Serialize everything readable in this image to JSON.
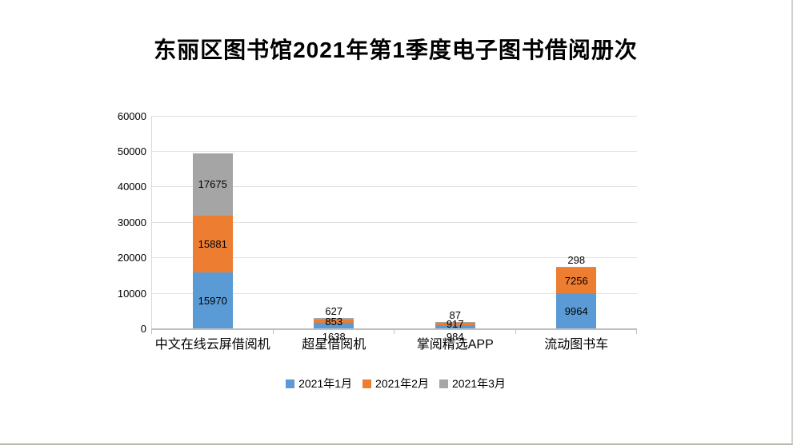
{
  "title": "东丽区图书馆2021年第1季度电子图书借阅册次",
  "colors": {
    "series_jan": "#5B9BD5",
    "series_feb": "#ED7D31",
    "series_mar": "#A5A5A5",
    "gridline": "#E2E2E2",
    "axis_line": "#BFBFBF",
    "text": "#000000"
  },
  "chart_data": {
    "type": "bar",
    "stacked": true,
    "title": "东丽区图书馆2021年第1季度电子图书借阅册次",
    "categories": [
      "中文在线云屏借阅机",
      "超星借阅机",
      "掌阅精选APP",
      "流动图书车"
    ],
    "series": [
      {
        "name": "2021年1月",
        "color": "#5B9BD5",
        "values": [
          15970,
          1638,
          984,
          9964
        ]
      },
      {
        "name": "2021年2月",
        "color": "#ED7D31",
        "values": [
          15881,
          853,
          917,
          7256
        ]
      },
      {
        "name": "2021年3月",
        "color": "#A5A5A5",
        "values": [
          17675,
          627,
          87,
          298
        ]
      }
    ],
    "totals": [
      49526,
      3118,
      1988,
      17518
    ],
    "xlabel": "",
    "ylabel": "",
    "ylim": [
      0,
      60000
    ],
    "ytick_step": 10000,
    "ytick_labels": [
      "0",
      "10000",
      "20000",
      "30000",
      "40000",
      "50000",
      "60000"
    ],
    "grid": true,
    "data_labels": true,
    "legend_position": "bottom"
  }
}
